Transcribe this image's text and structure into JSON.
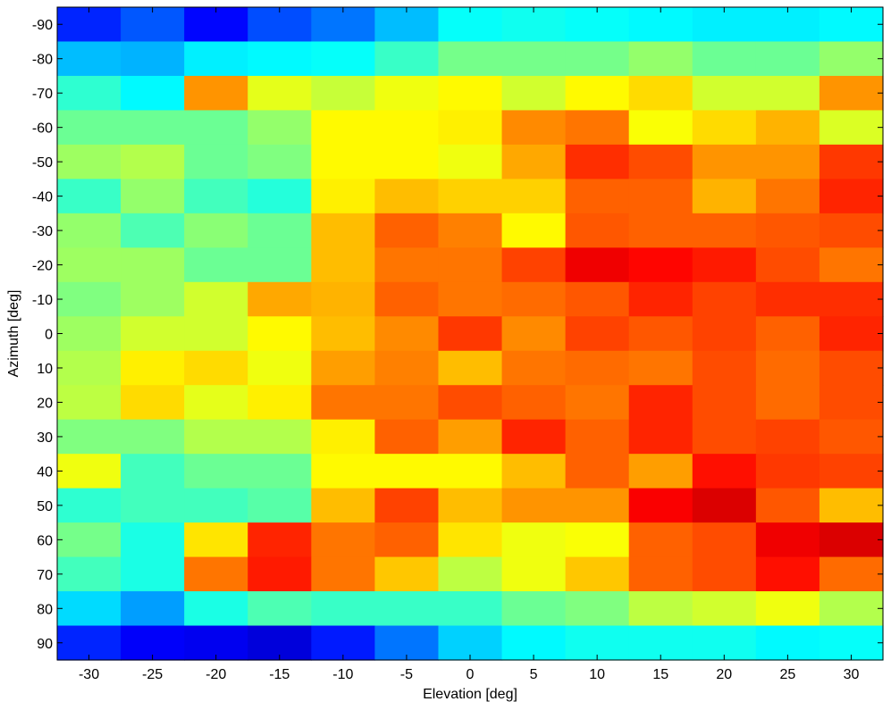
{
  "chart_data": {
    "type": "heatmap",
    "title": "",
    "xlabel": "Elevation [deg]",
    "ylabel": "Azimuth [deg]",
    "x": [
      -30,
      -25,
      -20,
      -15,
      -10,
      -5,
      0,
      5,
      10,
      15,
      20,
      25,
      30
    ],
    "y": [
      -90,
      -80,
      -70,
      -60,
      -50,
      -40,
      -30,
      -20,
      -10,
      0,
      10,
      20,
      30,
      40,
      50,
      60,
      70,
      80,
      90
    ],
    "xticks": [
      "-30",
      "-25",
      "-20",
      "-15",
      "-10",
      "-5",
      "0",
      "5",
      "10",
      "15",
      "20",
      "25",
      "30"
    ],
    "yticks": [
      "-90",
      "-80",
      "-70",
      "-60",
      "-50",
      "-40",
      "-30",
      "-20",
      "-10",
      "0",
      "10",
      "20",
      "30",
      "40",
      "50",
      "60",
      "70",
      "80",
      "90"
    ],
    "colormap": "jet",
    "clim": [
      0,
      1
    ],
    "grid": false,
    "values": [
      [
        0.16,
        0.21,
        0.13,
        0.2,
        0.24,
        0.31,
        0.38,
        0.39,
        0.38,
        0.37,
        0.36,
        0.36,
        0.37
      ],
      [
        0.31,
        0.3,
        0.36,
        0.37,
        0.38,
        0.43,
        0.49,
        0.49,
        0.49,
        0.52,
        0.48,
        0.48,
        0.52
      ],
      [
        0.42,
        0.37,
        0.73,
        0.6,
        0.57,
        0.61,
        0.63,
        0.58,
        0.63,
        0.66,
        0.58,
        0.58,
        0.73
      ],
      [
        0.48,
        0.48,
        0.48,
        0.52,
        0.63,
        0.63,
        0.64,
        0.74,
        0.76,
        0.62,
        0.66,
        0.7,
        0.59
      ],
      [
        0.53,
        0.55,
        0.48,
        0.5,
        0.63,
        0.63,
        0.61,
        0.71,
        0.83,
        0.8,
        0.73,
        0.73,
        0.82
      ],
      [
        0.43,
        0.52,
        0.44,
        0.41,
        0.64,
        0.69,
        0.67,
        0.67,
        0.78,
        0.78,
        0.7,
        0.76,
        0.84
      ],
      [
        0.52,
        0.45,
        0.51,
        0.48,
        0.69,
        0.78,
        0.75,
        0.63,
        0.79,
        0.78,
        0.78,
        0.79,
        0.8
      ],
      [
        0.53,
        0.53,
        0.48,
        0.48,
        0.69,
        0.76,
        0.76,
        0.81,
        0.89,
        0.87,
        0.85,
        0.8,
        0.76
      ],
      [
        0.5,
        0.53,
        0.58,
        0.71,
        0.7,
        0.78,
        0.76,
        0.77,
        0.79,
        0.84,
        0.81,
        0.83,
        0.83
      ],
      [
        0.53,
        0.58,
        0.58,
        0.63,
        0.69,
        0.74,
        0.82,
        0.74,
        0.81,
        0.79,
        0.81,
        0.78,
        0.84
      ],
      [
        0.55,
        0.64,
        0.66,
        0.61,
        0.72,
        0.75,
        0.69,
        0.76,
        0.77,
        0.76,
        0.8,
        0.77,
        0.8
      ],
      [
        0.56,
        0.66,
        0.6,
        0.64,
        0.76,
        0.76,
        0.8,
        0.78,
        0.76,
        0.84,
        0.8,
        0.77,
        0.8
      ],
      [
        0.5,
        0.5,
        0.55,
        0.55,
        0.64,
        0.78,
        0.72,
        0.84,
        0.78,
        0.84,
        0.8,
        0.81,
        0.79
      ],
      [
        0.61,
        0.44,
        0.48,
        0.48,
        0.63,
        0.63,
        0.63,
        0.69,
        0.78,
        0.72,
        0.86,
        0.82,
        0.81
      ],
      [
        0.42,
        0.44,
        0.44,
        0.46,
        0.69,
        0.81,
        0.69,
        0.73,
        0.73,
        0.88,
        0.91,
        0.79,
        0.69
      ],
      [
        0.49,
        0.4,
        0.65,
        0.84,
        0.76,
        0.78,
        0.65,
        0.61,
        0.62,
        0.78,
        0.8,
        0.89,
        0.91
      ],
      [
        0.44,
        0.4,
        0.76,
        0.85,
        0.76,
        0.68,
        0.56,
        0.61,
        0.68,
        0.78,
        0.8,
        0.86,
        0.77
      ],
      [
        0.34,
        0.28,
        0.4,
        0.45,
        0.43,
        0.43,
        0.43,
        0.48,
        0.5,
        0.56,
        0.58,
        0.61,
        0.55
      ],
      [
        0.16,
        0.12,
        0.11,
        0.09,
        0.15,
        0.24,
        0.33,
        0.37,
        0.39,
        0.39,
        0.39,
        0.37,
        0.38
      ]
    ]
  }
}
